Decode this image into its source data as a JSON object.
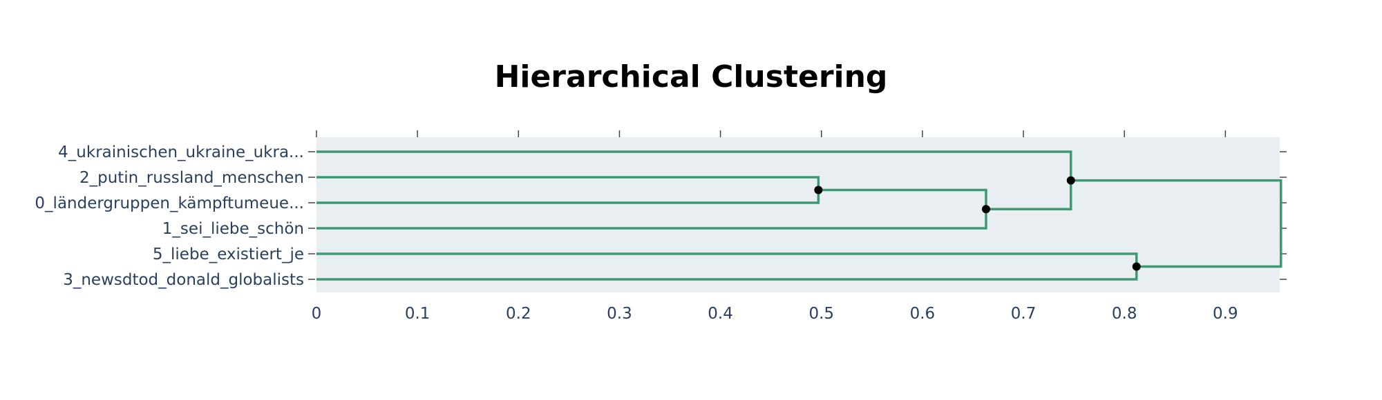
{
  "chart_data": {
    "type": "dendrogram",
    "title": "Hierarchical Clustering",
    "xlim": [
      0,
      0.957
    ],
    "x_ticks": [
      "0",
      "0.1",
      "0.2",
      "0.3",
      "0.4",
      "0.5",
      "0.6",
      "0.7",
      "0.8",
      "0.9"
    ],
    "x_tick_values": [
      0,
      0.1,
      0.2,
      0.3,
      0.4,
      0.5,
      0.6,
      0.7,
      0.8,
      0.9
    ],
    "leaves": [
      "4_ukrainischen_ukraine_ukra...",
      "2_putin_russland_menschen",
      "0_ländergruppen_kämpftumeue...",
      "1_sei_liebe_schön",
      "5_liebe_existiert_je",
      "3_newsdtod_donald_globalists"
    ],
    "merges": [
      {
        "left": "2_putin_russland_menschen",
        "right": "0_ländergruppen_kämpftumeue...",
        "distance": 0.497
      },
      {
        "left": "cluster(2,0)",
        "right": "1_sei_liebe_schön",
        "distance": 0.663
      },
      {
        "left": "4_ukrainischen_ukraine_ukra...",
        "right": "cluster(2,0,1)",
        "distance": 0.747
      },
      {
        "left": "5_liebe_existiert_je",
        "right": "3_newsdtod_donald_globalists",
        "distance": 0.812
      },
      {
        "left": "cluster(4,2,0,1)",
        "right": "cluster(5,3)",
        "distance": 0.955
      }
    ],
    "grid": false,
    "colors": {
      "link": "#3d9970",
      "plot_bg": "#e9eef2",
      "node": "#000000",
      "tick_text": "#2a3f5f",
      "axis": "#444444"
    }
  }
}
